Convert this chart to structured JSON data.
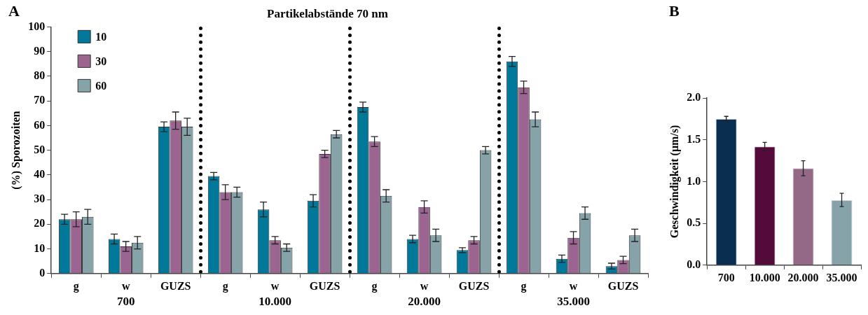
{
  "chart_data": [
    {
      "type": "bar",
      "title": "Partikelabstände 70 nm",
      "ylabel": "(%) Sporozoiten",
      "categories": [
        "g",
        "w",
        "GUZS",
        "g",
        "w",
        "GUZS",
        "g",
        "w",
        "GUZS",
        "g",
        "w",
        "GUZS"
      ],
      "series": [
        {
          "name": "10",
          "color": "#00789a",
          "values": [
            22,
            14,
            59.5,
            39.5,
            26,
            29.5,
            67.5,
            14,
            9.5,
            86,
            6,
            3
          ],
          "errors": [
            2,
            2,
            2,
            1.5,
            3,
            2.5,
            2,
            1.5,
            1,
            2,
            1.5,
            1.2
          ]
        },
        {
          "name": "30",
          "color": "#9c6490",
          "values": [
            22,
            11,
            62,
            33,
            13.5,
            48.5,
            53.5,
            27,
            13.5,
            75.5,
            14.5,
            5.5
          ],
          "errors": [
            3,
            2,
            3.5,
            3,
            1.5,
            1.5,
            2,
            2.5,
            1.5,
            2.5,
            2.5,
            1.5
          ]
        },
        {
          "name": "60",
          "color": "#86a3aa",
          "values": [
            23,
            12.5,
            59.5,
            33,
            10.5,
            56.5,
            31.5,
            15.5,
            50,
            62.5,
            24.5,
            15.5
          ],
          "errors": [
            3,
            2.5,
            3.5,
            2,
            1.5,
            1.5,
            2.5,
            2.5,
            1.5,
            3,
            2.5,
            2.5
          ]
        }
      ],
      "ylim": [
        0,
        100
      ],
      "yticks": [
        0,
        10,
        20,
        30,
        40,
        50,
        60,
        70,
        80,
        90,
        100
      ],
      "grid": false,
      "legend": "top left",
      "annotations": [
        "A",
        "700",
        "10.000",
        "20.000",
        "35.000"
      ]
    },
    {
      "type": "bar",
      "ylabel": "Geschwindigkeit (µm/s)",
      "categories": [
        "700",
        "10.000",
        "20.000",
        "35.000"
      ],
      "values": [
        1.75,
        1.42,
        1.16,
        0.78
      ],
      "errors": [
        0.03,
        0.05,
        0.09,
        0.08
      ],
      "colors": [
        "#0a2e50",
        "#550a3c",
        "#946887",
        "#86a3aa"
      ],
      "ylim": [
        0,
        2
      ],
      "yticks": [
        {
          "value": 0,
          "label": "0.0"
        },
        {
          "value": 0.5,
          "label": "0.5"
        },
        {
          "value": 1,
          "label": "1.0"
        },
        {
          "value": 1.5,
          "label": "1.5"
        },
        {
          "value": 2,
          "label": "2.0"
        }
      ],
      "grid": false,
      "annotations": [
        "B"
      ]
    }
  ]
}
